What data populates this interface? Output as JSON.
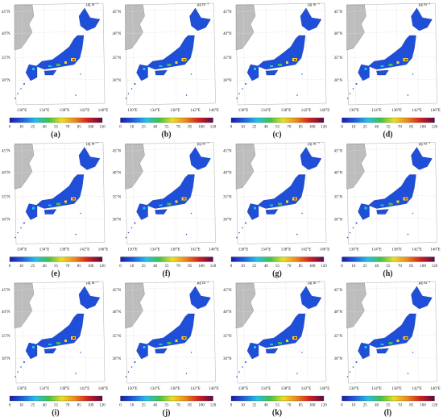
{
  "unit": "µg m⁻³",
  "latitude_labels": [
    "45°N",
    "40°N",
    "35°N",
    "30°N"
  ],
  "longitude_labels": [
    "130°E",
    "134°E",
    "138°E",
    "142°E",
    "146°E"
  ],
  "colorbar": {
    "ticks": [
      0,
      10,
      25,
      40,
      55,
      70,
      85,
      100,
      120
    ]
  },
  "panels": [
    {
      "label": "(a)"
    },
    {
      "label": "(b)"
    },
    {
      "label": "(c)"
    },
    {
      "label": "(d)"
    },
    {
      "label": "(e)"
    },
    {
      "label": "(f)"
    },
    {
      "label": "(g)"
    },
    {
      "label": "(h)"
    },
    {
      "label": "(i)"
    },
    {
      "label": "(j)"
    },
    {
      "label": "(k)"
    },
    {
      "label": "(l)"
    }
  ]
}
